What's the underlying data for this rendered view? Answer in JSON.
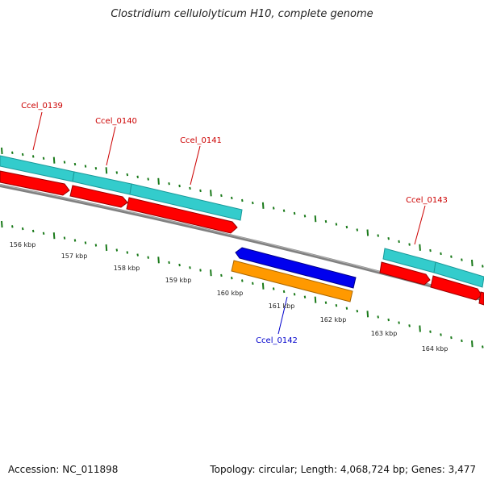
{
  "title": "Clostridium cellulolyticum H10, complete genome",
  "footer": {
    "accession": "Accession: NC_011898",
    "summary": "Topology: circular; Length: 4,068,724 bp; Genes: 3,477"
  },
  "colors": {
    "backbone": "#808080",
    "gene_label_forward": "#cc0000",
    "gene_label_reverse": "#0000cc",
    "cds_cyan": "#33cccc",
    "cds_red": "#ff0000",
    "cds_blue": "#0000ee",
    "cds_orange": "#ff9900",
    "tick": "#1a7a1a"
  },
  "ticks": [
    {
      "label": "156 kbp"
    },
    {
      "label": "157 kbp"
    },
    {
      "label": "158 kbp"
    },
    {
      "label": "159 kbp"
    },
    {
      "label": "160 kbp"
    },
    {
      "label": "161 kbp"
    },
    {
      "label": "162 kbp"
    },
    {
      "label": "163 kbp"
    },
    {
      "label": "164 kbp"
    }
  ],
  "genes": [
    {
      "name": "Ccel_0139",
      "strand": "forward"
    },
    {
      "name": "Ccel_0140",
      "strand": "forward"
    },
    {
      "name": "Ccel_0141",
      "strand": "forward"
    },
    {
      "name": "Ccel_0142",
      "strand": "reverse"
    },
    {
      "name": "Ccel_0143",
      "strand": "forward"
    }
  ]
}
